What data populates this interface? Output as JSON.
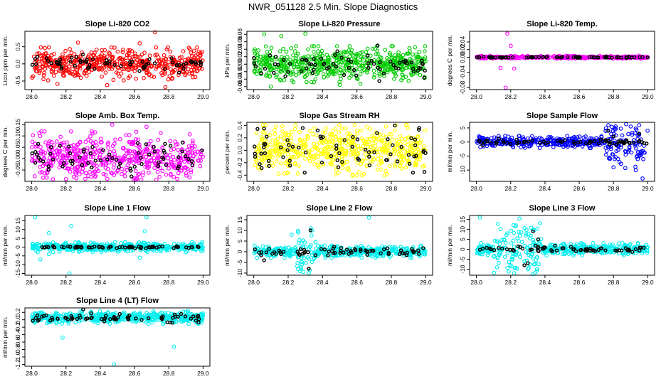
{
  "figure_title": "NWR_051128  2.5 Min. Slope Diagnostics",
  "chart_data": [
    {
      "type": "scatter",
      "title": "Slope Li-820 CO2",
      "ylabel": "Licor ppm per min.",
      "xlabel": "",
      "xlim": [
        28.0,
        29.0
      ],
      "ylim": [
        -0.75,
        0.95
      ],
      "xticks": [
        28.0,
        28.2,
        28.4,
        28.6,
        28.8,
        29.0
      ],
      "xtick_labels": [
        "28.0",
        "28.2",
        "28.4",
        "28.6",
        "28.8",
        "29.0"
      ],
      "yticks": [
        -0.5,
        0.0,
        0.5
      ],
      "ytick_labels": [
        "-0.5",
        "0.0",
        "0.5"
      ],
      "series": [
        {
          "name": "all",
          "color": "#ff0000",
          "n": 520,
          "center": 0.0,
          "spread": 0.2,
          "outliers": [
            [
              28.27,
              0.62
            ],
            [
              28.63,
              0.6
            ],
            [
              28.72,
              0.92
            ],
            [
              28.15,
              -0.58
            ],
            [
              28.44,
              -0.62
            ],
            [
              28.78,
              -0.68
            ]
          ]
        },
        {
          "name": "selected",
          "color": "#000000",
          "n": 70,
          "center": 0.0,
          "spread": 0.12,
          "outliers": []
        }
      ]
    },
    {
      "type": "scatter",
      "title": "Slope Li-820 Pressure",
      "ylabel": "kPa per min.",
      "xlabel": "",
      "xlim": [
        28.0,
        29.0
      ],
      "ylim": [
        -0.068,
        0.088
      ],
      "xticks": [
        28.0,
        28.2,
        28.4,
        28.6,
        28.8,
        29.0
      ],
      "xtick_labels": [
        "28.0",
        "28.2",
        "28.4",
        "28.6",
        "28.8",
        "29.0"
      ],
      "yticks": [
        -0.06,
        -0.04,
        -0.02,
        0.0,
        0.02,
        0.04,
        0.06,
        0.08
      ],
      "ytick_labels": [
        "-0.06",
        "-0.04",
        "-0.02",
        "0.00",
        "0.02",
        "0.04",
        "0.06",
        "0.08"
      ],
      "series": [
        {
          "name": "all",
          "color": "#00cc00",
          "n": 560,
          "center": 0.0,
          "spread": 0.02,
          "outliers": [
            [
              28.06,
              0.08
            ],
            [
              28.16,
              0.075
            ],
            [
              28.3,
              0.082
            ],
            [
              28.1,
              -0.06
            ],
            [
              28.5,
              -0.055
            ],
            [
              28.62,
              -0.052
            ]
          ]
        },
        {
          "name": "selected",
          "color": "#000000",
          "n": 70,
          "center": 0.0,
          "spread": 0.015,
          "outliers": [
            [
              28.72,
              0.05
            ],
            [
              28.73,
              -0.045
            ]
          ]
        }
      ]
    },
    {
      "type": "scatter",
      "title": "Slope Li-820 Temp.",
      "ylabel": "degrees C per min.",
      "xlabel": "",
      "xlim": [
        28.0,
        29.0
      ],
      "ylim": [
        -0.085,
        0.068
      ],
      "xticks": [
        28.0,
        28.2,
        28.4,
        28.6,
        28.8,
        29.0
      ],
      "xtick_labels": [
        "28.0",
        "28.2",
        "28.4",
        "28.6",
        "28.8",
        "29.0"
      ],
      "yticks": [
        -0.08,
        -0.04,
        0.0,
        0.02,
        0.04
      ],
      "ytick_labels": [
        "-0.08",
        "-0.04",
        "0.00",
        "0.02",
        "0.04"
      ],
      "series": [
        {
          "name": "all",
          "color": "#ff00ff",
          "n": 420,
          "center": 0.0,
          "spread": 0.0015,
          "burst": [
            28.1,
            28.33,
            0.012
          ],
          "outliers": [
            [
              28.18,
              0.062
            ],
            [
              28.17,
              -0.08
            ],
            [
              28.2,
              0.03
            ],
            [
              28.14,
              -0.028
            ],
            [
              28.22,
              -0.03
            ],
            [
              28.95,
              0.004
            ],
            [
              28.96,
              -0.004
            ]
          ]
        },
        {
          "name": "selected",
          "color": "#000000",
          "n": 70,
          "center": 0.0,
          "spread": 0.0008,
          "outliers": []
        }
      ]
    },
    {
      "type": "scatter",
      "title": "Slope Amb. Box Temp.",
      "ylabel": "degrees C per min.",
      "xlabel": "",
      "xlim": [
        28.0,
        29.0
      ],
      "ylim": [
        -0.1,
        0.16
      ],
      "xticks": [
        28.0,
        28.2,
        28.4,
        28.6,
        28.8,
        29.0
      ],
      "xtick_labels": [
        "28.0",
        "28.2",
        "28.4",
        "28.6",
        "28.8",
        "29.0"
      ],
      "yticks": [
        -0.05,
        0.0,
        0.05,
        0.1,
        0.15
      ],
      "ytick_labels": [
        "-0.05",
        "0.00",
        "0.05",
        "0.10",
        "0.15"
      ],
      "series": [
        {
          "name": "all",
          "color": "#ff00ff",
          "n": 540,
          "center": 0.0,
          "spread": 0.05,
          "outliers": [
            [
              28.47,
              0.15
            ],
            [
              28.67,
              0.14
            ],
            [
              28.2,
              -0.09
            ],
            [
              28.6,
              -0.085
            ],
            [
              28.37,
              -0.08
            ]
          ]
        },
        {
          "name": "selected",
          "color": "#000000",
          "n": 70,
          "center": 0.0,
          "spread": 0.035,
          "outliers": []
        }
      ]
    },
    {
      "type": "scatter",
      "title": "Slope Gas Stream RH",
      "ylabel": "percent per min.",
      "xlabel": "",
      "xlim": [
        28.0,
        29.0
      ],
      "ylim": [
        -0.5,
        0.45
      ],
      "xticks": [
        28.0,
        28.2,
        28.4,
        28.6,
        28.8,
        29.0
      ],
      "xtick_labels": [
        "28.0",
        "28.2",
        "28.4",
        "28.6",
        "28.8",
        "29.0"
      ],
      "yticks": [
        -0.4,
        -0.2,
        0.0,
        0.2,
        0.4
      ],
      "ytick_labels": [
        "-0.4",
        "-0.2",
        "0.0",
        "0.2",
        "0.4"
      ],
      "series": [
        {
          "name": "all",
          "color": "#ffff00",
          "n": 560,
          "center": 0.0,
          "spread": 0.17,
          "outliers": []
        },
        {
          "name": "selected",
          "color": "#000000",
          "n": 70,
          "center": 0.0,
          "spread": 0.15,
          "outliers": [
            [
              28.82,
              0.4
            ],
            [
              28.96,
              0.33
            ],
            [
              28.06,
              0.35
            ]
          ]
        }
      ]
    },
    {
      "type": "scatter",
      "title": "Slope Sample Flow",
      "ylabel": "ml/min per min.",
      "xlabel": "",
      "xlim": [
        28.0,
        29.0
      ],
      "ylim": [
        -14,
        7
      ],
      "xticks": [
        28.0,
        28.2,
        28.4,
        28.6,
        28.8,
        29.0
      ],
      "xtick_labels": [
        "28.0",
        "28.2",
        "28.4",
        "28.6",
        "28.8",
        "29.0"
      ],
      "yticks": [
        -10,
        -5,
        0,
        5
      ],
      "ytick_labels": [
        "-10",
        "-5",
        "0",
        "5"
      ],
      "series": [
        {
          "name": "all",
          "color": "#0000ff",
          "n": 420,
          "center": 0.0,
          "spread": 0.9,
          "burst": [
            28.75,
            29.0,
            3.5
          ],
          "outliers": [
            [
              28.77,
              6
            ],
            [
              28.78,
              -6
            ],
            [
              28.8,
              -9
            ],
            [
              28.95,
              6
            ],
            [
              28.97,
              -13
            ],
            [
              28.93,
              -10
            ],
            [
              28.9,
              5.5
            ],
            [
              28.95,
              -5
            ]
          ]
        },
        {
          "name": "selected",
          "color": "#000000",
          "n": 70,
          "center": 0.0,
          "spread": 0.5,
          "outliers": [
            [
              28.77,
              4
            ],
            [
              28.8,
              2
            ],
            [
              28.95,
              3
            ]
          ]
        }
      ]
    },
    {
      "type": "scatter",
      "title": "Slope Line 1 Flow",
      "ylabel": "ml/min per min.",
      "xlabel": "",
      "xlim": [
        28.0,
        29.0
      ],
      "ylim": [
        -16,
        18
      ],
      "xticks": [
        28.0,
        28.2,
        28.4,
        28.6,
        28.8,
        29.0
      ],
      "xtick_labels": [
        "28.0",
        "28.2",
        "28.4",
        "28.6",
        "28.8",
        "29.0"
      ],
      "yticks": [
        -15,
        -10,
        -5,
        0,
        5,
        10,
        15
      ],
      "ytick_labels": [
        "-15",
        "-10",
        "-5",
        "0",
        "5",
        "10",
        "15"
      ],
      "series": [
        {
          "name": "all",
          "color": "#00eeee",
          "n": 460,
          "center": 0.0,
          "spread": 1.2,
          "outliers": [
            [
              28.02,
              17
            ],
            [
              28.1,
              8
            ],
            [
              28.23,
              12
            ],
            [
              28.67,
              17
            ],
            [
              28.22,
              -15
            ],
            [
              28.05,
              -7
            ],
            [
              28.63,
              -6
            ],
            [
              28.66,
              9
            ],
            [
              28.1,
              -4
            ]
          ]
        },
        {
          "name": "selected",
          "color": "#000000",
          "n": 70,
          "center": 0.0,
          "spread": 0.3,
          "outliers": []
        }
      ]
    },
    {
      "type": "scatter",
      "title": "Slope Line 2 Flow",
      "ylabel": "ml/min per min.",
      "xlabel": "",
      "xlim": [
        28.0,
        29.0
      ],
      "ylim": [
        -11,
        17
      ],
      "xticks": [
        28.0,
        28.2,
        28.4,
        28.6,
        28.8,
        29.0
      ],
      "xtick_labels": [
        "28.0",
        "28.2",
        "28.4",
        "28.6",
        "28.8",
        "29.0"
      ],
      "yticks": [
        -10,
        -5,
        0,
        5,
        10,
        15
      ],
      "ytick_labels": [
        "-10",
        "-5",
        "0",
        "5",
        "10",
        "15"
      ],
      "series": [
        {
          "name": "all",
          "color": "#00eeee",
          "n": 440,
          "center": 0.0,
          "spread": 1.2,
          "burst": [
            28.25,
            28.36,
            4
          ],
          "outliers": [
            [
              28.67,
              16
            ],
            [
              28.22,
              8
            ],
            [
              28.32,
              -10
            ],
            [
              28.28,
              -6
            ],
            [
              28.34,
              10
            ]
          ]
        },
        {
          "name": "selected",
          "color": "#000000",
          "n": 70,
          "center": 0.0,
          "spread": 1.0,
          "outliers": [
            [
              28.33,
              10
            ],
            [
              28.32,
              -8
            ],
            [
              28.06,
              -4
            ]
          ]
        }
      ]
    },
    {
      "type": "scatter",
      "title": "Slope Line 3 Flow",
      "ylabel": "ml/min per min.",
      "xlabel": "",
      "xlim": [
        28.0,
        29.0
      ],
      "ylim": [
        -13,
        17
      ],
      "xticks": [
        28.0,
        28.2,
        28.4,
        28.6,
        28.8,
        29.0
      ],
      "xtick_labels": [
        "28.0",
        "28.2",
        "28.4",
        "28.6",
        "28.8",
        "29.0"
      ],
      "yticks": [
        -10,
        -5,
        0,
        5,
        10,
        15
      ],
      "ytick_labels": [
        "-10",
        "-5",
        "0",
        "5",
        "10",
        "15"
      ],
      "series": [
        {
          "name": "all",
          "color": "#00eeee",
          "n": 460,
          "center": 0.0,
          "spread": 1.3,
          "burst": [
            28.1,
            28.38,
            4
          ],
          "outliers": [
            [
              28.02,
              16
            ],
            [
              28.22,
              -12
            ],
            [
              28.3,
              -10
            ],
            [
              28.18,
              8
            ],
            [
              28.33,
              10
            ],
            [
              28.12,
              -9
            ]
          ]
        },
        {
          "name": "selected",
          "color": "#000000",
          "n": 70,
          "center": 0.0,
          "spread": 0.8,
          "outliers": [
            [
              28.33,
              9
            ],
            [
              28.28,
              -8
            ],
            [
              28.3,
              -7
            ],
            [
              28.36,
              5
            ]
          ]
        }
      ]
    },
    {
      "type": "scatter",
      "title": "Slope Line 4 (LT) Flow",
      "ylabel": "ml/min per min.",
      "xlabel": "",
      "xlim": [
        28.0,
        29.0
      ],
      "ylim": [
        -1.25,
        0.32
      ],
      "xticks": [
        28.0,
        28.2,
        28.4,
        28.6,
        28.8,
        29.0
      ],
      "xtick_labels": [
        "28.0",
        "28.2",
        "28.4",
        "28.6",
        "28.8",
        "29.0"
      ],
      "yticks": [
        -1.2,
        -1.0,
        -0.8,
        -0.6,
        -0.4,
        -0.2,
        0.0,
        0.2
      ],
      "ytick_labels": [
        "-1.2",
        "-1.0",
        "-0.8",
        "-0.6",
        "-0.4",
        "-0.2",
        "0.0",
        "0.2"
      ],
      "series": [
        {
          "name": "all",
          "color": "#00eeee",
          "n": 520,
          "center": 0.06,
          "spread": 0.07,
          "outliers": [
            [
              28.18,
              -0.48
            ],
            [
              28.83,
              -0.72
            ],
            [
              28.48,
              -1.2
            ]
          ]
        },
        {
          "name": "selected",
          "color": "#000000",
          "n": 70,
          "center": 0.05,
          "spread": 0.06,
          "outliers": [
            [
              28.3,
              0.28
            ]
          ]
        }
      ]
    }
  ]
}
